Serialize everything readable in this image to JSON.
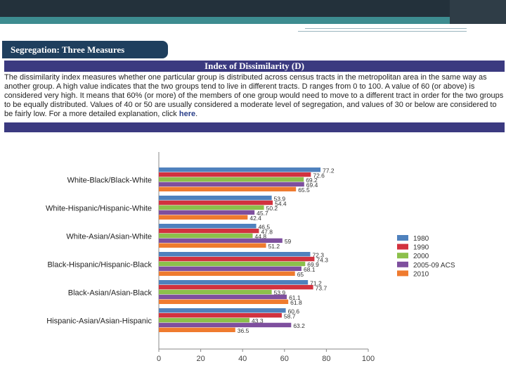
{
  "slide": {
    "section_title": "Segregation: Three Measures",
    "header_title": "Index of Dissimilarity (D)",
    "description": "The dissimilarity index measures whether one particular group is distributed across census tracts in the metropolitan area in the same way as another group. A high value indicates that the two groups tend to live in different tracts. D ranges from 0 to 100. A value of 60 (or above) is considered very high. It means that 60% (or more) of the members of one group would need to move to a different tract in order for the two groups to be equally distributed. Values of 40 or 50 are usually considered a moderate level of segregation, and values of 30 or below are considered to be fairly low. For a more detailed explanation, click",
    "link_text": "here",
    "link_suffix": "."
  },
  "colors": {
    "top_band": "#23313b",
    "teal_band": "#3d8c90",
    "section_tab": "#1f3f5e",
    "header_bar": "#3b3a80",
    "series": [
      "#4f81bd",
      "#d2323f",
      "#8cc04b",
      "#7e4f9e",
      "#ef7b2f"
    ]
  },
  "chart_data": {
    "type": "bar",
    "orientation": "horizontal",
    "categories": [
      "White-Black/Black-White",
      "White-Hispanic/Hispanic-White",
      "White-Asian/Asian-White",
      "Black-Hispanic/Hispanic-Black",
      "Black-Asian/Asian-Black",
      "Hispanic-Asian/Asian-Hispanic"
    ],
    "series": [
      {
        "name": "1980",
        "values": [
          77.2,
          53.9,
          46.5,
          72.3,
          71.2,
          60.6
        ]
      },
      {
        "name": "1990",
        "values": [
          72.6,
          54.4,
          47.8,
          74.3,
          73.7,
          58.7
        ]
      },
      {
        "name": "2000",
        "values": [
          69.2,
          50.2,
          44.8,
          69.9,
          53.9,
          43.3
        ]
      },
      {
        "name": "2005-09 ACS",
        "values": [
          69.4,
          45.7,
          59,
          68.1,
          61.1,
          63.2
        ]
      },
      {
        "name": "2010",
        "values": [
          65.5,
          42.4,
          51.2,
          65,
          61.8,
          36.5
        ]
      }
    ],
    "value_labels": [
      [
        "77.2",
        "53.9",
        "46.5",
        "72.3",
        "71.2",
        "60.6"
      ],
      [
        "72.6",
        "54.4",
        "47.8",
        "74.3",
        "73.7",
        "58.7"
      ],
      [
        "69.2",
        "50.2",
        "44.8",
        "69.9",
        "53.9",
        "43.3"
      ],
      [
        "69.4",
        "45.7",
        "59",
        "68.1",
        "61.1",
        "63.2"
      ],
      [
        "65.5",
        "42.4",
        "51.2",
        "65",
        "61.8",
        "36.5"
      ]
    ],
    "xlim": [
      0,
      100
    ],
    "xticks": [
      0,
      20,
      40,
      60,
      80,
      100
    ],
    "xtick_labels": [
      "0",
      "20",
      "40",
      "60",
      "80",
      "100"
    ],
    "title": "",
    "xlabel": "",
    "ylabel": "",
    "grid": false,
    "legend": {
      "position": "right",
      "entries": [
        "1980",
        "1990",
        "2000",
        "2005-09 ACS",
        "2010"
      ]
    }
  }
}
